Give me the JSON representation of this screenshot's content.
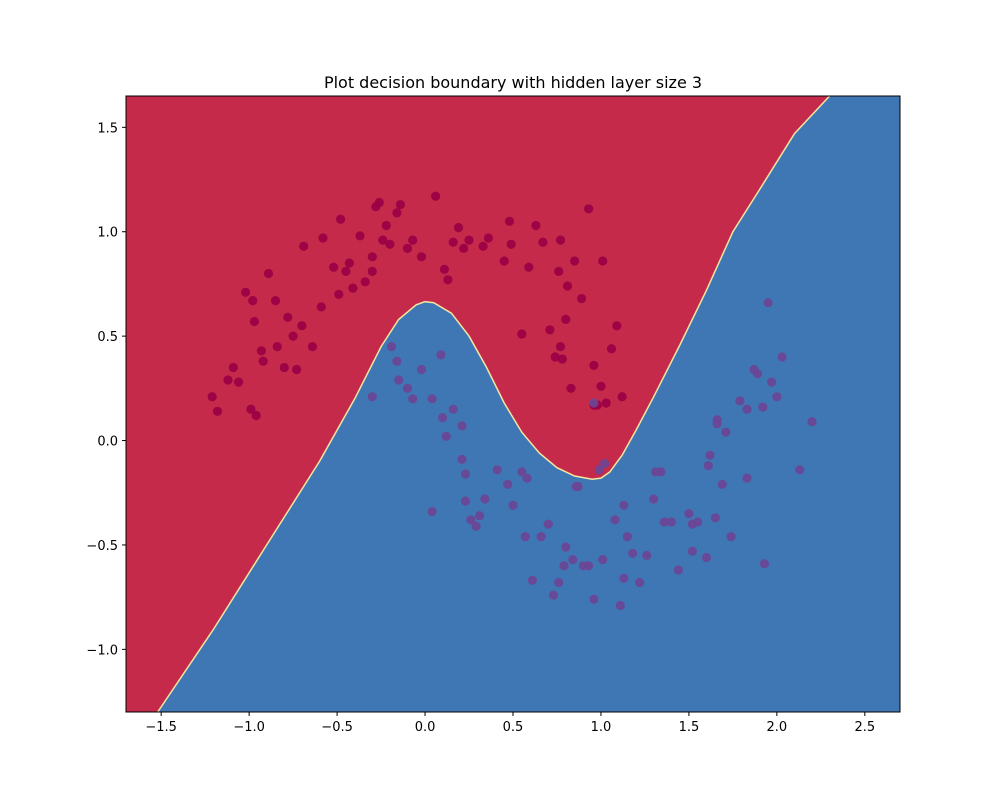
{
  "chart_data": {
    "type": "scatter",
    "title": "Plot decision boundary with hidden layer size 3",
    "xlabel": "",
    "ylabel": "",
    "xlim": [
      -1.7,
      2.7
    ],
    "ylim": [
      -1.3,
      1.65
    ],
    "xticks": [
      {
        "value": -1.5,
        "label": "−1.5"
      },
      {
        "value": -1.0,
        "label": "−1.0"
      },
      {
        "value": -0.5,
        "label": "−0.5"
      },
      {
        "value": 0.0,
        "label": "0.0"
      },
      {
        "value": 0.5,
        "label": "0.5"
      },
      {
        "value": 1.0,
        "label": "1.0"
      },
      {
        "value": 1.5,
        "label": "1.5"
      },
      {
        "value": 2.0,
        "label": "2.0"
      },
      {
        "value": 2.5,
        "label": "2.5"
      }
    ],
    "yticks": [
      {
        "value": -1.0,
        "label": "−1.0"
      },
      {
        "value": -0.5,
        "label": "−0.5"
      },
      {
        "value": 0.0,
        "label": "0.0"
      },
      {
        "value": 0.5,
        "label": "0.5"
      },
      {
        "value": 1.0,
        "label": "1.0"
      },
      {
        "value": 1.5,
        "label": "1.5"
      }
    ],
    "grid": false,
    "colors": {
      "region_class0": "#c52a4a",
      "region_class1": "#3f77b5",
      "boundary": "#f2e7a1",
      "points_class0": "#990044",
      "points_class1": "#6b4596"
    },
    "decision_boundary": {
      "x": [
        -1.52,
        -1.2,
        -0.9,
        -0.6,
        -0.4,
        -0.25,
        -0.15,
        -0.05,
        0.0,
        0.05,
        0.15,
        0.25,
        0.35,
        0.45,
        0.55,
        0.65,
        0.75,
        0.85,
        0.95,
        1.0,
        1.05,
        1.12,
        1.2,
        1.3,
        1.45,
        1.6,
        1.75,
        1.9,
        2.1,
        2.3
      ],
      "y": [
        -1.3,
        -0.9,
        -0.5,
        -0.1,
        0.2,
        0.45,
        0.58,
        0.65,
        0.665,
        0.66,
        0.61,
        0.5,
        0.35,
        0.18,
        0.04,
        -0.06,
        -0.13,
        -0.17,
        -0.185,
        -0.18,
        -0.15,
        -0.07,
        0.05,
        0.21,
        0.46,
        0.72,
        1.0,
        1.2,
        1.47,
        1.65
      ]
    },
    "series": [
      {
        "class": 0,
        "x": [
          -1.21,
          -1.18,
          -1.12,
          -1.09,
          -1.06,
          -1.02,
          -0.99,
          -0.98,
          -0.97,
          -0.96,
          -0.93,
          -0.92,
          -0.89,
          -0.85,
          -0.84,
          -0.8,
          -0.78,
          -0.75,
          -0.73,
          -0.7,
          -0.69,
          -0.64,
          -0.59,
          -0.58,
          -0.52,
          -0.49,
          -0.48,
          -0.45,
          -0.43,
          -0.41,
          -0.37,
          -0.34,
          -0.3,
          -0.3,
          -0.28,
          -0.26,
          -0.24,
          -0.22,
          -0.2,
          -0.16,
          -0.14,
          -0.1,
          -0.07,
          -0.02,
          0.06,
          0.11,
          0.13,
          0.16,
          0.19,
          0.22,
          0.25,
          0.33,
          0.36,
          0.45,
          0.48,
          0.49,
          0.55,
          0.59,
          0.63,
          0.67,
          0.71,
          0.74,
          0.76,
          0.77,
          0.77,
          0.78,
          0.8,
          0.81,
          0.83,
          0.85,
          0.89,
          0.93,
          0.96,
          0.96,
          0.98,
          1.0,
          1.01,
          1.03,
          1.06,
          1.09,
          1.12
        ],
        "y": [
          0.21,
          0.14,
          0.29,
          0.35,
          0.28,
          0.71,
          0.15,
          0.67,
          0.57,
          0.12,
          0.43,
          0.38,
          0.8,
          0.67,
          0.45,
          0.35,
          0.59,
          0.5,
          0.34,
          0.55,
          0.93,
          0.45,
          0.64,
          0.97,
          0.83,
          0.7,
          1.06,
          0.81,
          0.85,
          0.73,
          0.98,
          0.76,
          0.81,
          0.88,
          1.12,
          1.14,
          0.96,
          1.03,
          0.94,
          1.09,
          1.13,
          0.92,
          0.96,
          0.88,
          1.17,
          0.82,
          0.77,
          0.95,
          1.02,
          0.92,
          0.96,
          0.93,
          0.97,
          0.86,
          1.05,
          0.94,
          0.51,
          0.83,
          1.03,
          0.95,
          0.53,
          0.4,
          0.81,
          0.96,
          0.45,
          0.39,
          0.58,
          0.74,
          0.25,
          0.86,
          0.68,
          1.11,
          0.36,
          0.17,
          0.17,
          0.26,
          0.86,
          0.18,
          0.44,
          0.55,
          0.21
        ]
      },
      {
        "class": 1,
        "x": [
          -0.3,
          -0.19,
          -0.16,
          -0.15,
          -0.1,
          -0.07,
          -0.02,
          0.04,
          0.09,
          0.1,
          0.21,
          0.16,
          0.21,
          0.23,
          0.23,
          0.26,
          0.29,
          0.31,
          0.34,
          0.41,
          0.47,
          0.5,
          0.55,
          0.57,
          0.58,
          0.61,
          0.66,
          0.7,
          0.73,
          0.76,
          0.79,
          0.8,
          0.84,
          0.86,
          0.9,
          0.93,
          0.96,
          1.01,
          1.08,
          1.11,
          1.13,
          1.15,
          1.18,
          1.22,
          1.26,
          1.3,
          1.34,
          1.36,
          1.4,
          1.44,
          1.5,
          1.52,
          1.55,
          1.6,
          1.62,
          1.65,
          1.66,
          1.66,
          1.69,
          1.71,
          1.74,
          1.79,
          1.83,
          1.87,
          1.89,
          1.92,
          1.95,
          1.97,
          2.0,
          2.03,
          2.13,
          2.2,
          0.04,
          0.99,
          0.96,
          1.02,
          0.87,
          1.13,
          1.31,
          1.52,
          1.61,
          1.83,
          1.93,
          0.12
        ],
        "y": [
          0.21,
          0.45,
          0.38,
          0.29,
          0.25,
          0.2,
          0.34,
          0.2,
          0.41,
          0.11,
          0.07,
          0.15,
          -0.09,
          -0.16,
          -0.29,
          -0.38,
          -0.41,
          -0.36,
          -0.28,
          -0.14,
          -0.21,
          -0.31,
          -0.15,
          -0.46,
          -0.18,
          -0.67,
          -0.46,
          -0.4,
          -0.74,
          -0.68,
          -0.6,
          -0.51,
          -0.57,
          -0.22,
          -0.6,
          -0.6,
          -0.76,
          -0.57,
          -0.38,
          -0.79,
          -0.66,
          -0.46,
          -0.54,
          -0.68,
          -0.55,
          -0.28,
          -0.15,
          -0.39,
          -0.39,
          -0.62,
          -0.35,
          -0.53,
          -0.39,
          -0.56,
          -0.07,
          -0.37,
          0.08,
          0.1,
          -0.21,
          0.04,
          -0.46,
          0.19,
          0.15,
          0.34,
          0.32,
          0.16,
          0.66,
          0.28,
          0.21,
          0.4,
          -0.14,
          0.09,
          -0.34,
          -0.14,
          0.18,
          -0.11,
          -0.22,
          -0.31,
          -0.15,
          -0.4,
          -0.12,
          -0.18,
          -0.59,
          0.02
        ]
      }
    ]
  }
}
